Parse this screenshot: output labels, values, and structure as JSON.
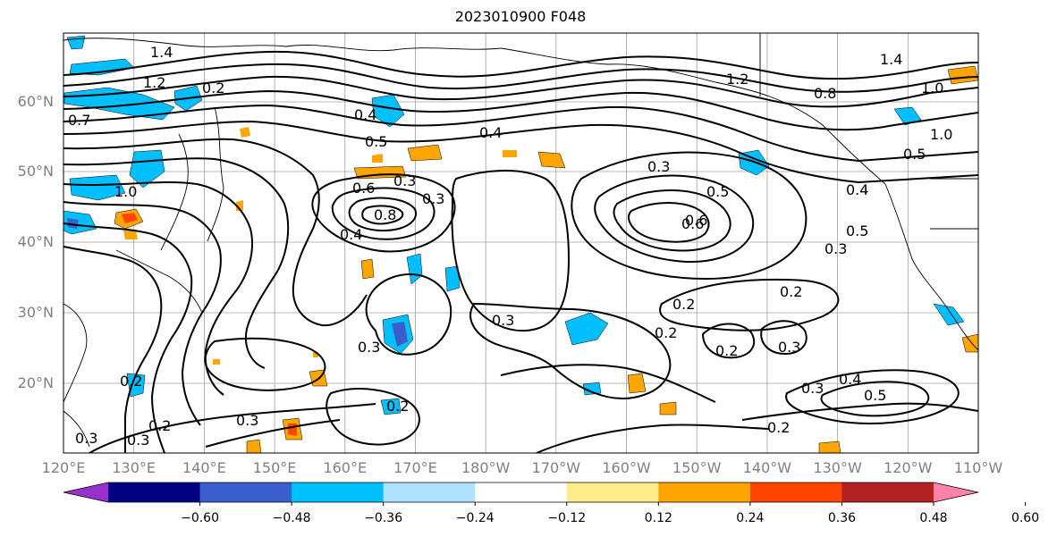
{
  "title": "2023010900 F048",
  "map": {
    "lat_labels": [
      "60°N",
      "50°N",
      "40°N",
      "30°N",
      "20°N"
    ],
    "lon_labels": [
      "120°E",
      "130°E",
      "140°E",
      "150°E",
      "160°E",
      "170°E",
      "180°W",
      "170°W",
      "160°W",
      "150°W",
      "140°W",
      "130°W",
      "120°W",
      "110°W"
    ],
    "contour_labels": [
      "1.4",
      "1.2",
      "0.7",
      "1.0",
      "0.4",
      "0.2",
      "1.2",
      "0.8",
      "1.4",
      "1.0",
      "1.0",
      "0.5",
      "0.4",
      "0.3",
      "0.5",
      "0.6",
      "0.8",
      "0.6",
      "0.4",
      "0.3",
      "0.4",
      "0.3",
      "0.5",
      "0.6",
      "0.3",
      "0.5",
      "0.2",
      "0.2",
      "0.3",
      "0.3",
      "0.2",
      "0.2",
      "0.3",
      "0.2",
      "0.3",
      "0.3",
      "0.4",
      "0.5",
      "0.2",
      "0.2",
      "0.3",
      "0.2",
      "0.3"
    ]
  },
  "colorbar": {
    "colors": [
      "#9932cc",
      "#000080",
      "#3a5fcd",
      "#00bfff",
      "#b0e2ff",
      "#ffffff",
      "#ffec8b",
      "#ffa500",
      "#ff4500",
      "#b22222",
      "#ff82ab"
    ],
    "tick_labels": [
      "−0.60",
      "−0.48",
      "−0.36",
      "−0.24",
      "−0.12",
      "0.12",
      "0.24",
      "0.36",
      "0.48",
      "0.60"
    ]
  }
}
